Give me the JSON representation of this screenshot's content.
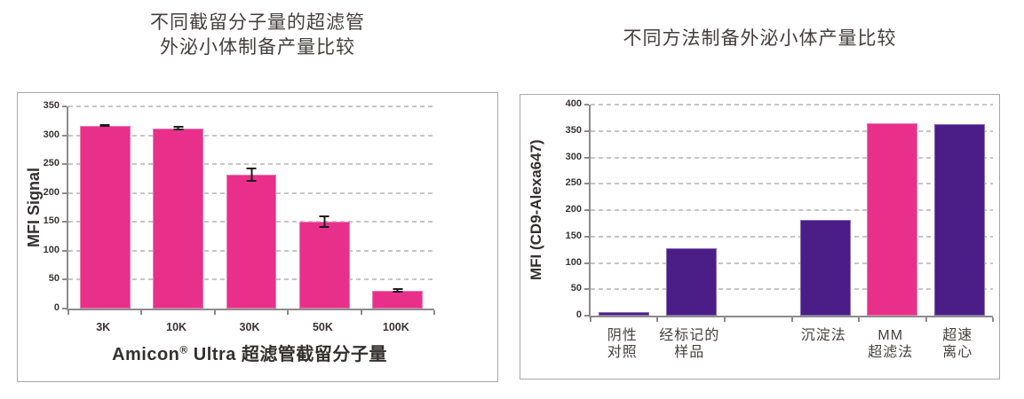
{
  "page": {
    "background": "#FFFFFF"
  },
  "colors": {
    "pink": "#E8308A",
    "purple": "#4A1D87",
    "gridline": "#C5C5C5",
    "axis_line": "#8C8C8C",
    "panel_border": "#A8A8A8",
    "error_bar": "#1C1C1C",
    "title_text": "#453D3D",
    "tick_text": "#3A3333",
    "category_text": "#463E3E"
  },
  "chart_data": [
    {
      "type": "bar",
      "title": "不同截留分子量的超滤管外泌小体制备产量比较",
      "title_lines": [
        "不同截留分子量的超滤管",
        "外泌小体制备产量比较"
      ],
      "xlabel": "Amicon® Ultra 超滤管截留分子量",
      "xlabel_parts": {
        "pre": "Amicon",
        "sup": "®",
        "post": " Ultra 超滤管截留分子量"
      },
      "ylabel": "MFI Signal",
      "categories": [
        "3K",
        "10K",
        "30K",
        "50K",
        "100K"
      ],
      "values": [
        317,
        312,
        232,
        150,
        31
      ],
      "error_bars": [
        2,
        4,
        12,
        11,
        4
      ],
      "ylim": [
        0,
        350
      ],
      "ytick_step": 50,
      "bar_color": "#E8308A",
      "grid": "dashed-horizontal",
      "legend": "none"
    },
    {
      "type": "bar",
      "title": "不同方法制备外泌小体产量比较",
      "title_lines": [
        "不同方法制备外泌小体产量比较"
      ],
      "ylabel": "MFI (CD9-Alexa647)",
      "categories": [
        "阴性对照",
        "经标记的样品",
        "沉淀法",
        "MM超滤法",
        "超速离心"
      ],
      "category_lines": [
        [
          "阴性",
          "对照"
        ],
        [
          "经标记的",
          "样品"
        ],
        [
          "沉淀法"
        ],
        [
          "MM",
          "超滤法"
        ],
        [
          "超速",
          "离心"
        ]
      ],
      "values": [
        7,
        128,
        182,
        365,
        363
      ],
      "bar_colors": [
        "#4A1D87",
        "#4A1D87",
        "#4A1D87",
        "#E8308A",
        "#4A1D87"
      ],
      "ylim": [
        0,
        400
      ],
      "ytick_step": 50,
      "grid": "dashed-horizontal",
      "legend": "none",
      "layout_hint": {
        "empty_slot_after_index": 1
      }
    }
  ]
}
